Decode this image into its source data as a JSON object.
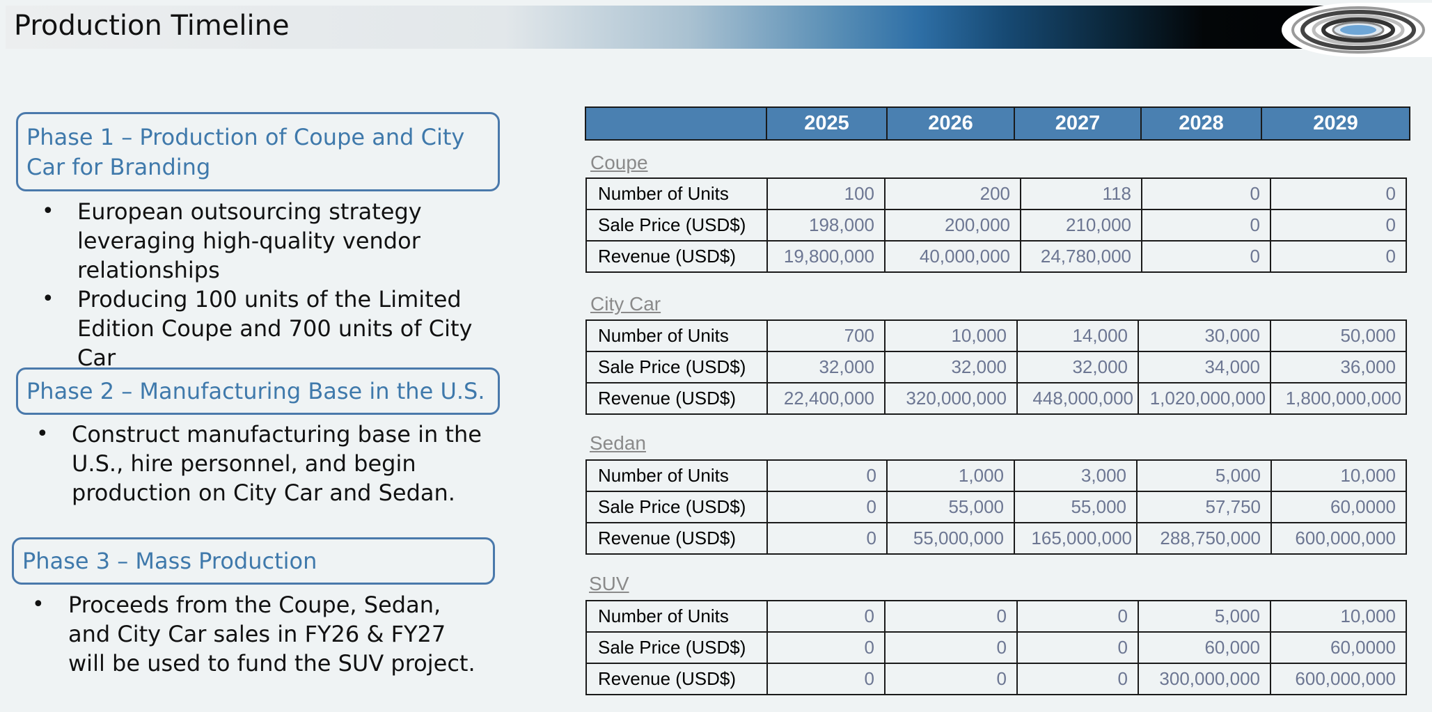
{
  "header": {
    "title": "Production Timeline"
  },
  "phases": [
    {
      "title": "Phase 1 – Production of Coupe and City Car for Branding",
      "bullets": [
        "European outsourcing strategy leveraging high-quality vendor relationships",
        "Producing 100 units of the Limited Edition Coupe and 700 units of City Car"
      ]
    },
    {
      "title": "Phase 2 – Manufacturing Base in the U.S.",
      "bullets": [
        "Construct manufacturing base in the U.S., hire personnel, and begin production on City Car and Sedan."
      ]
    },
    {
      "title": "Phase 3 – Mass Production",
      "bullets": [
        "Proceeds from the Coupe, Sedan, and City Car sales in FY26 & FY27 will be used to fund the SUV project."
      ]
    }
  ],
  "table": {
    "years": [
      "2025",
      "2026",
      "2027",
      "2028",
      "2029"
    ],
    "row_labels": [
      "Number of Units",
      "Sale Price (USD$)",
      "Revenue (USD$)"
    ],
    "sections": [
      {
        "name": "Coupe",
        "rows": [
          [
            "100",
            "200",
            "118",
            "0",
            "0"
          ],
          [
            "198,000",
            "200,000",
            "210,000",
            "0",
            "0"
          ],
          [
            "19,800,000",
            "40,000,000",
            "24,780,000",
            "0",
            "0"
          ]
        ]
      },
      {
        "name": "City Car",
        "rows": [
          [
            "700",
            "10,000",
            "14,000",
            "30,000",
            "50,000"
          ],
          [
            "32,000",
            "32,000",
            "32,000",
            "34,000",
            "36,000"
          ],
          [
            "22,400,000",
            "320,000,000",
            "448,000,000",
            "1,020,000,000",
            "1,800,000,000"
          ]
        ]
      },
      {
        "name": "Sedan",
        "rows": [
          [
            "0",
            "1,000",
            "3,000",
            "5,000",
            "10,000"
          ],
          [
            "0",
            "55,000",
            "55,000",
            "57,750",
            "60,0000"
          ],
          [
            "0",
            "55,000,000",
            "165,000,000",
            "288,750,000",
            "600,000,000"
          ]
        ]
      },
      {
        "name": "SUV",
        "rows": [
          [
            "0",
            "0",
            "0",
            "5,000",
            "10,000"
          ],
          [
            "0",
            "0",
            "0",
            "60,000",
            "60,0000"
          ],
          [
            "0",
            "0",
            "0",
            "300,000,000",
            "600,000,000"
          ]
        ]
      }
    ]
  },
  "colors": {
    "accent": "#4a80b1",
    "phase_text": "#3f79ab",
    "value_text": "#6c7692"
  }
}
